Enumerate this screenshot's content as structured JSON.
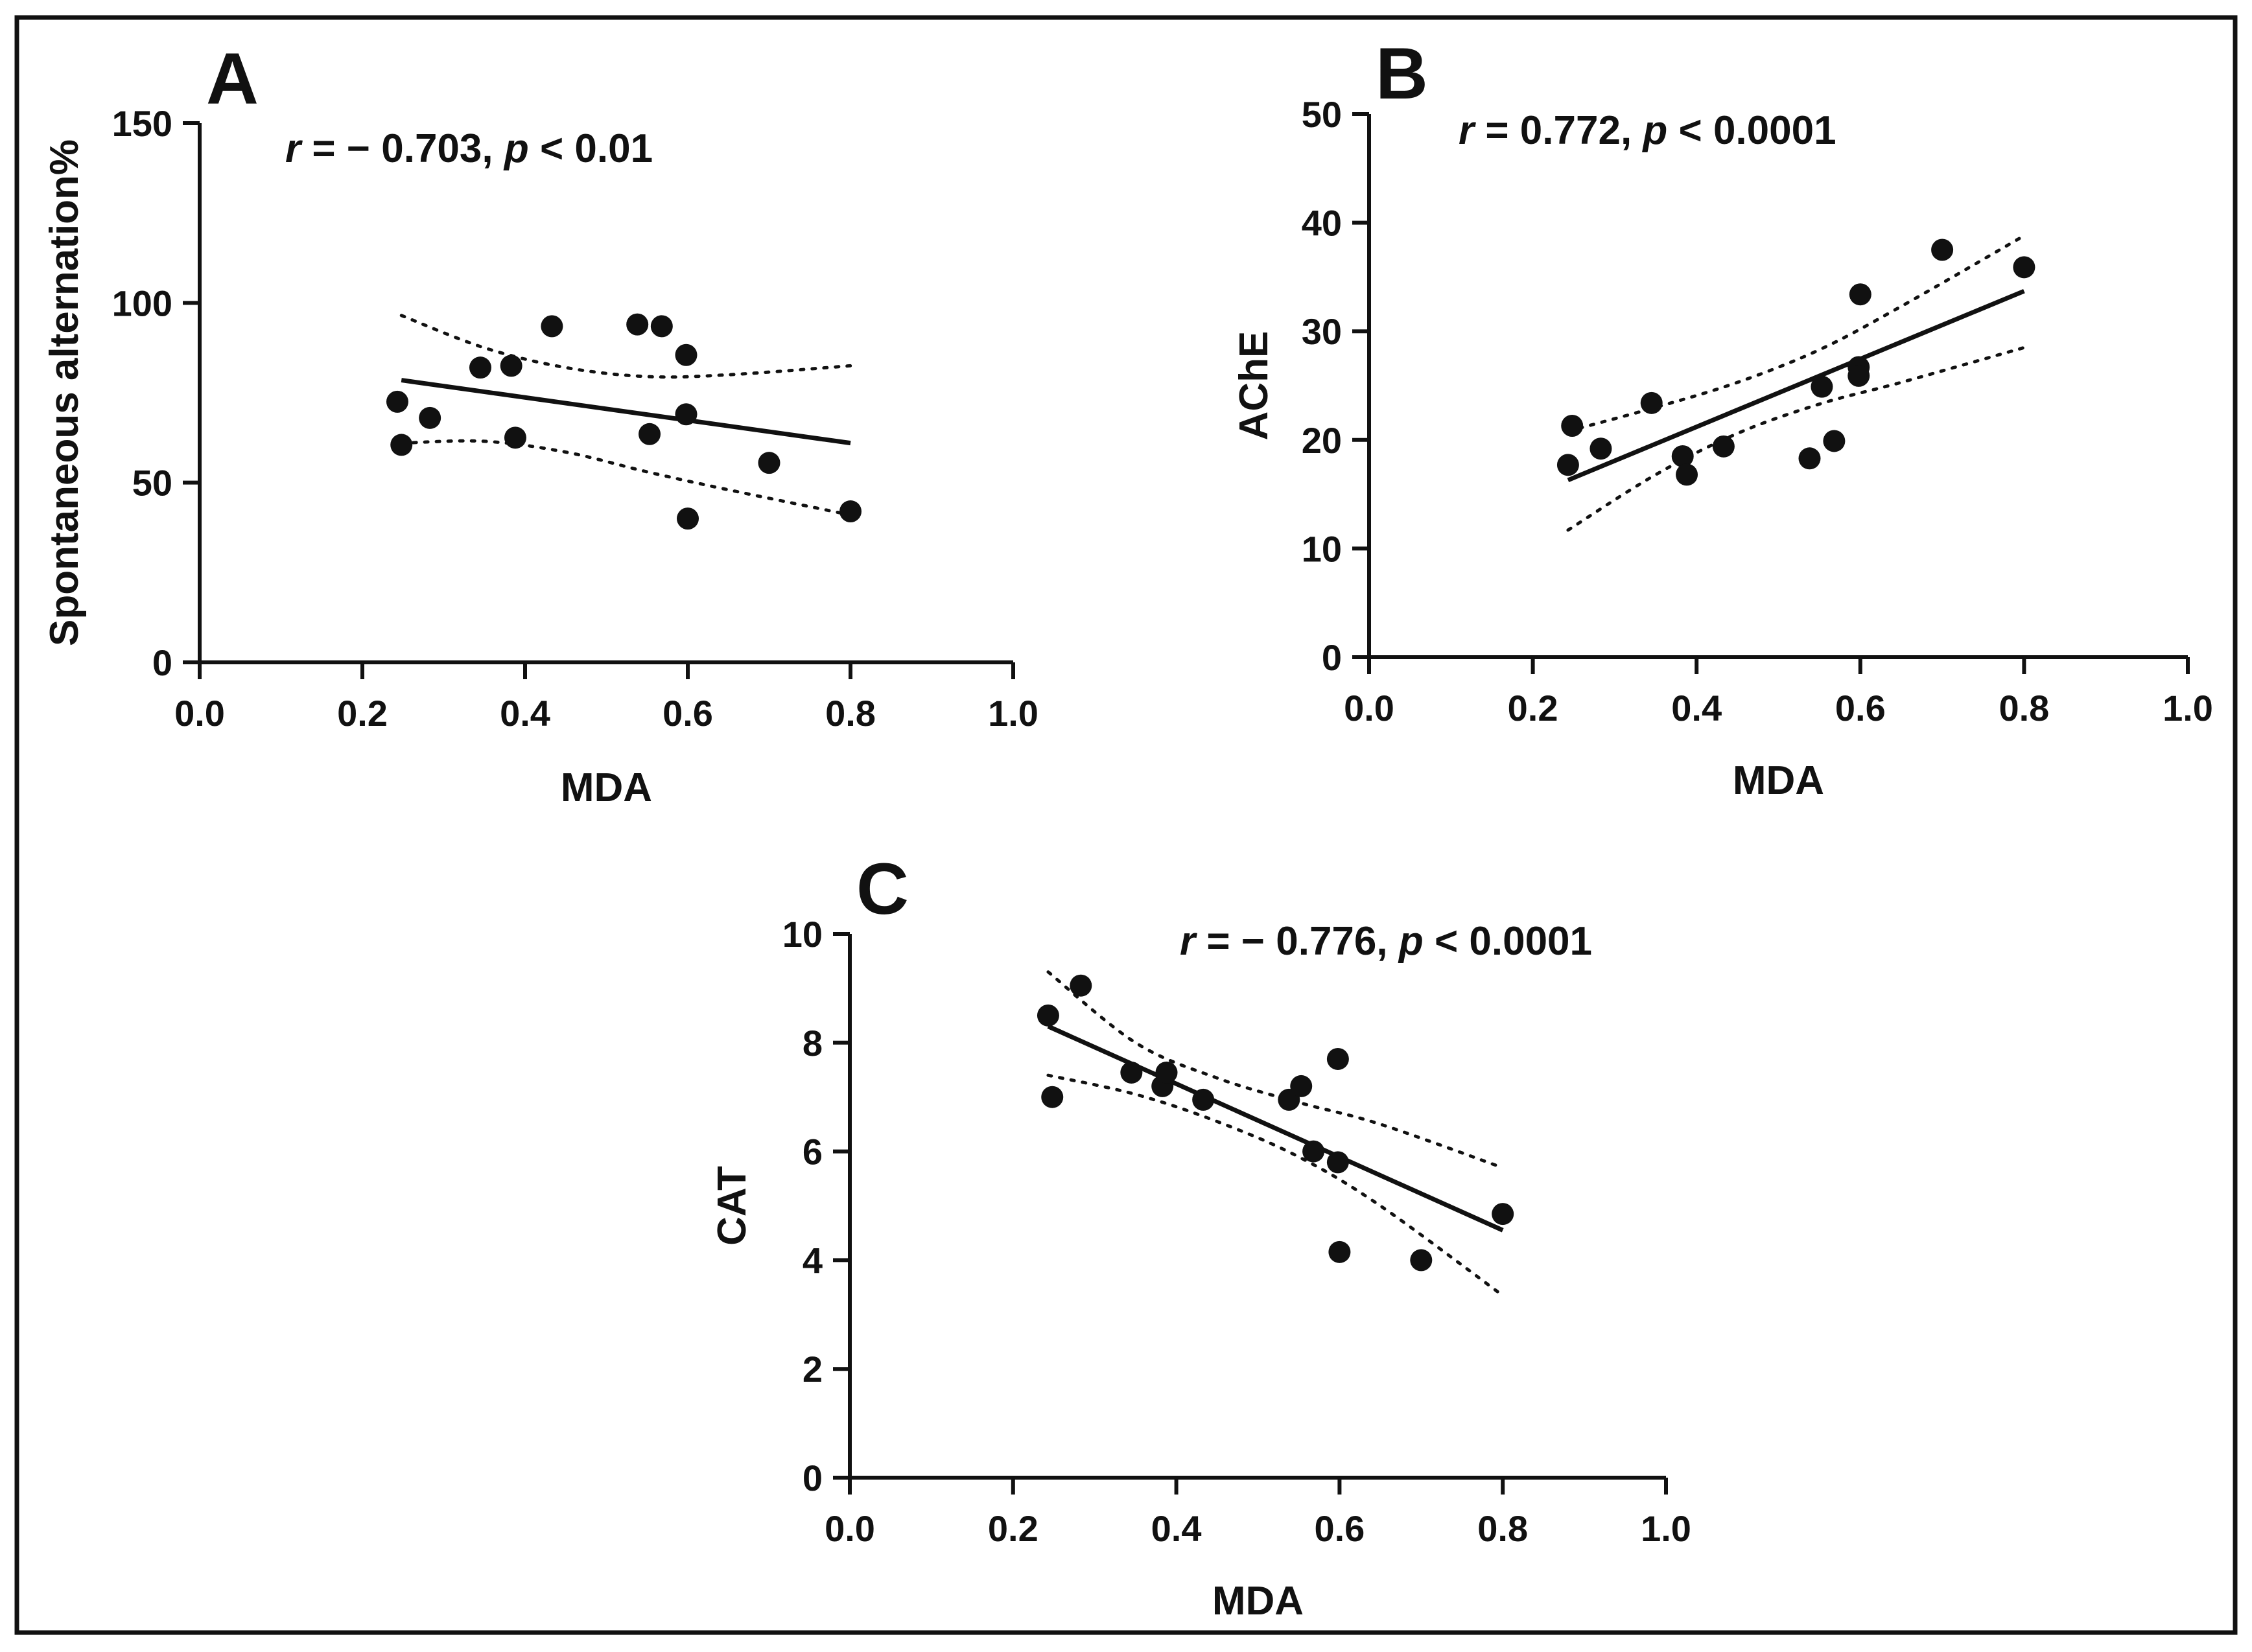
{
  "chart_data": [
    {
      "type": "scatter",
      "panel": "A",
      "stat": {
        "r_symbol": "r",
        "r_value": " = − 0.703, ",
        "p_symbol": "p",
        "p_value": " < 0.01"
      },
      "xlabel": "MDA",
      "ylabel": "Spontaneous alternation%",
      "xlim": [
        0,
        1.0
      ],
      "ylim": [
        0,
        150
      ],
      "xticks": [
        "0.0",
        "0.2",
        "0.4",
        "0.6",
        "0.8",
        "1.0"
      ],
      "yticks": [
        "0",
        "50",
        "100",
        "150"
      ],
      "x": [
        0.243,
        0.248,
        0.283,
        0.345,
        0.383,
        0.388,
        0.433,
        0.538,
        0.553,
        0.568,
        0.598,
        0.598,
        0.6,
        0.7,
        0.8
      ],
      "y": [
        72.5,
        60.5,
        68,
        82,
        82.5,
        62.5,
        93.5,
        94,
        63.5,
        93.5,
        85.5,
        69,
        40,
        55.5,
        42
      ],
      "fit": {
        "x": [
          0.248,
          0.8
        ],
        "y": [
          78.5,
          61.0
        ]
      },
      "ci_upper": {
        "x": [
          0.248,
          0.35,
          0.45,
          0.55,
          0.65,
          0.8
        ],
        "y": [
          96.5,
          87.5,
          82,
          79.5,
          80,
          82.5
        ]
      },
      "ci_lower": {
        "x": [
          0.248,
          0.35,
          0.45,
          0.55,
          0.65,
          0.8
        ],
        "y": [
          61,
          61.5,
          58.5,
          53,
          48,
          41
        ]
      }
    },
    {
      "type": "scatter",
      "panel": "B",
      "stat": {
        "r_symbol": "r",
        "r_value": " = 0.772, ",
        "p_symbol": "p",
        "p_value": " < 0.0001"
      },
      "xlabel": "MDA",
      "ylabel": "AChE",
      "xlim": [
        0,
        1.0
      ],
      "ylim": [
        0,
        50
      ],
      "xticks": [
        "0.0",
        "0.2",
        "0.4",
        "0.6",
        "0.8",
        "1.0"
      ],
      "yticks": [
        "0",
        "10",
        "20",
        "30",
        "40",
        "50"
      ],
      "x": [
        0.243,
        0.248,
        0.283,
        0.345,
        0.383,
        0.388,
        0.433,
        0.538,
        0.553,
        0.568,
        0.598,
        0.598,
        0.6,
        0.7,
        0.8
      ],
      "y": [
        17.7,
        21.3,
        19.2,
        23.4,
        18.5,
        16.8,
        19.4,
        18.3,
        24.9,
        19.9,
        26.7,
        25.9,
        33.4,
        37.5,
        35.9
      ],
      "fit": {
        "x": [
          0.243,
          0.8
        ],
        "y": [
          16.3,
          33.7
        ]
      },
      "ci_upper": {
        "x": [
          0.243,
          0.35,
          0.45,
          0.55,
          0.65,
          0.8
        ],
        "y": [
          20.8,
          23.0,
          25.3,
          28.3,
          32.3,
          38.8
        ]
      },
      "ci_lower": {
        "x": [
          0.243,
          0.35,
          0.45,
          0.55,
          0.65,
          0.8
        ],
        "y": [
          11.7,
          16.8,
          20.6,
          23.3,
          25.3,
          28.5
        ]
      }
    },
    {
      "type": "scatter",
      "panel": "C",
      "stat": {
        "r_symbol": "r",
        "r_value": " = − 0.776, ",
        "p_symbol": "p",
        "p_value": " < 0.0001"
      },
      "xlabel": "MDA",
      "ylabel": "CAT",
      "xlim": [
        0,
        1.0
      ],
      "ylim": [
        0,
        10
      ],
      "xticks": [
        "0.0",
        "0.2",
        "0.4",
        "0.6",
        "0.8",
        "1.0"
      ],
      "yticks": [
        "0",
        "2",
        "4",
        "6",
        "8",
        "10"
      ],
      "x": [
        0.243,
        0.248,
        0.283,
        0.345,
        0.383,
        0.388,
        0.433,
        0.538,
        0.553,
        0.568,
        0.598,
        0.598,
        0.6,
        0.7,
        0.8
      ],
      "y": [
        8.5,
        7.0,
        9.05,
        7.45,
        7.2,
        7.45,
        6.95,
        6.95,
        7.2,
        6.0,
        7.7,
        5.8,
        4.15,
        4.0,
        4.85
      ],
      "fit": {
        "x": [
          0.243,
          0.8
        ],
        "y": [
          8.3,
          4.55
        ]
      },
      "ci_upper": {
        "x": [
          0.243,
          0.35,
          0.45,
          0.55,
          0.65,
          0.8
        ],
        "y": [
          9.3,
          8.0,
          7.35,
          6.9,
          6.5,
          5.7
        ]
      },
      "ci_lower": {
        "x": [
          0.243,
          0.35,
          0.45,
          0.55,
          0.65,
          0.8
        ],
        "y": [
          7.4,
          7.05,
          6.55,
          5.9,
          5.0,
          3.35
        ]
      }
    }
  ]
}
